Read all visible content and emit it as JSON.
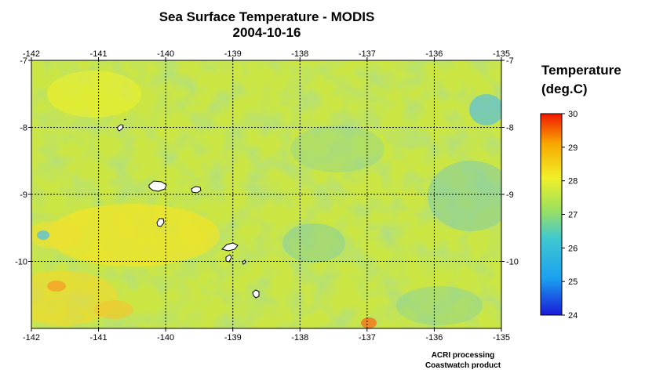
{
  "title_line1": "Sea Surface Temperature - MODIS",
  "title_line2": "2004-10-16",
  "map": {
    "lon_range": [
      -142,
      -135
    ],
    "lat_range": [
      -11,
      -7
    ],
    "lon_ticks": [
      "-142",
      "-141",
      "-140",
      "-139",
      "-138",
      "-137",
      "-136",
      "-135"
    ],
    "lat_ticks": [
      "-7",
      "-8",
      "-9",
      "-10"
    ],
    "gridlines": true
  },
  "legend": {
    "title_line1": "Temperature",
    "title_line2": "(deg.C)",
    "ticks": [
      "30",
      "29",
      "28",
      "27",
      "26",
      "25",
      "24"
    ],
    "range": [
      24,
      30
    ],
    "colors": [
      "#1a1ad8",
      "#1aa0f0",
      "#40c8d0",
      "#9ae060",
      "#f0f028",
      "#f8a800",
      "#f01800"
    ]
  },
  "credits": {
    "line1": "ACRI processing",
    "line2": "Coastwatch product"
  }
}
